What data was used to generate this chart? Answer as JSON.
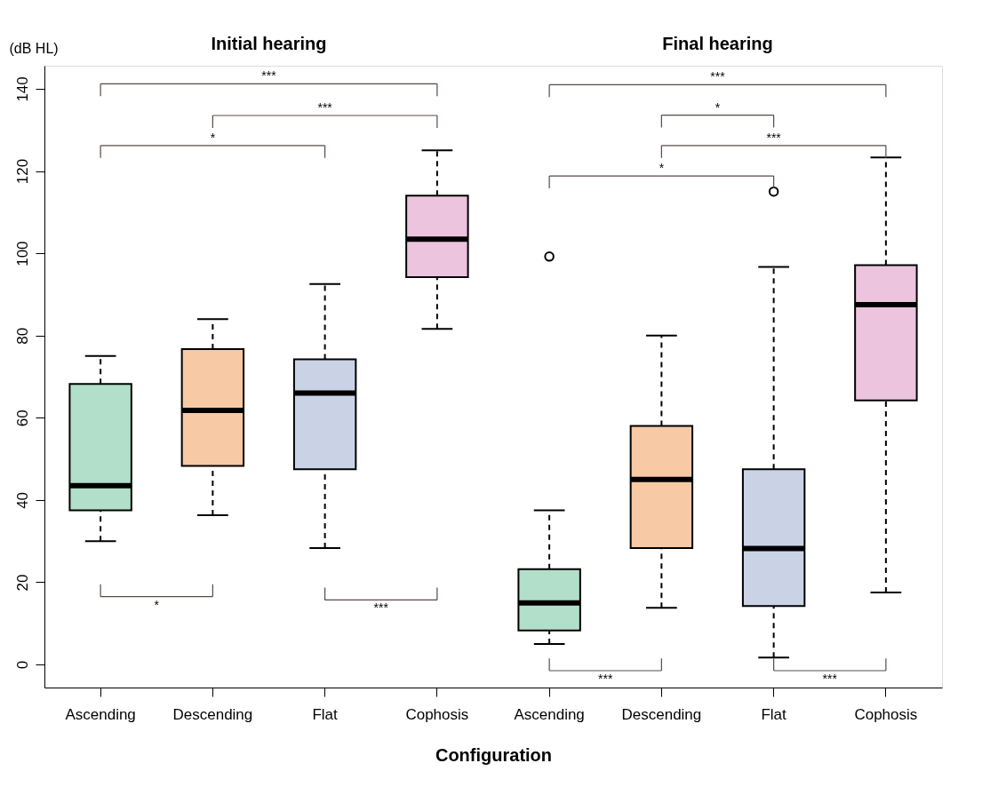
{
  "chart_data": {
    "type": "box",
    "ylabel": "(dB HL)",
    "xlabel": "Configuration",
    "categories": [
      "Ascending",
      "Descending",
      "Flat",
      "Cophosis",
      "Ascending",
      "Descending",
      "Flat",
      "Cophosis"
    ],
    "colors": [
      "#b2dfc9",
      "#f8c9a5",
      "#cad3e6",
      "#ecc4dd",
      "#b2dfc9",
      "#f8c9a5",
      "#cad3e6",
      "#ecc4dd"
    ],
    "boxes": [
      {
        "low": 30,
        "q1": 37.5,
        "median": 43.5,
        "q3": 68.2,
        "high": 75
      },
      {
        "low": 36.3,
        "q1": 48.3,
        "median": 61.8,
        "q3": 76.7,
        "high": 84
      },
      {
        "low": 28.3,
        "q1": 47.5,
        "median": 66,
        "q3": 74.2,
        "high": 92.5
      },
      {
        "low": 81.6,
        "q1": 94.2,
        "median": 103.4,
        "q3": 114,
        "high": 125
      },
      {
        "low": 5,
        "q1": 8.3,
        "median": 15,
        "q3": 23.2,
        "high": 37.5,
        "outliers": [
          99.2
        ]
      },
      {
        "low": 13.8,
        "q1": 28.3,
        "median": 45,
        "q3": 58,
        "high": 80
      },
      {
        "low": 1.7,
        "q1": 14.2,
        "median": 28.2,
        "q3": 47.5,
        "high": 96.7,
        "outliers": [
          115
        ]
      },
      {
        "low": 17.5,
        "q1": 64.2,
        "median": 87.5,
        "q3": 97.1,
        "high": 123.3
      }
    ],
    "ylim": [
      -5.6,
      145.6
    ],
    "yticks": [
      0,
      20,
      40,
      60,
      80,
      100,
      120,
      140
    ],
    "grid": false,
    "annotations": [
      "Initial hearing",
      "Final hearing",
      "***",
      "***",
      "*",
      "*",
      "***",
      "***",
      "*",
      "***",
      "*",
      "***",
      "***"
    ]
  }
}
